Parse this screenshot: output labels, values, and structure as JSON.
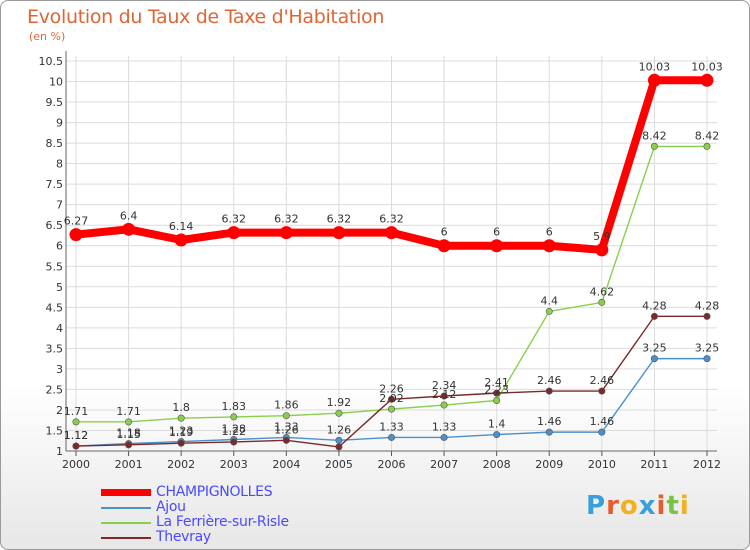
{
  "header": {
    "title": "Evolution du Taux de Taxe d'Habitation",
    "unit": "(en %)"
  },
  "logo": {
    "text": "Proxiti"
  },
  "chart_data": {
    "type": "line",
    "title": "Evolution du Taux de Taxe d'Habitation",
    "ylabel": "(en %)",
    "xlabel": "",
    "x": [
      "2000",
      "2001",
      "2002",
      "2003",
      "2004",
      "2005",
      "2006",
      "2007",
      "2008",
      "2009",
      "2010",
      "2011",
      "2012"
    ],
    "ylim": [
      1,
      10.5
    ],
    "yticks": [
      "1",
      "1.5",
      "2",
      "2.5",
      "3",
      "3.5",
      "4",
      "4.5",
      "5",
      "5.5",
      "6",
      "6.5",
      "7",
      "7.5",
      "8",
      "8.5",
      "9",
      "9.5",
      "10",
      "10.5"
    ],
    "grid": true,
    "legend_position": "bottom-left",
    "series": [
      {
        "name": "CHAMPIGNOLLES",
        "color": "#ff0000",
        "values": [
          6.27,
          6.4,
          6.14,
          6.32,
          6.32,
          6.32,
          6.32,
          6,
          6,
          6,
          5.9,
          10.03,
          10.03
        ],
        "labels": [
          "6.27",
          "6.4",
          "6.14",
          "6.32",
          "6.32",
          "6.32",
          "6.32",
          "6",
          "6",
          "6",
          "5.9",
          "10.03",
          "10.03"
        ]
      },
      {
        "name": "Ajou",
        "color": "#4a90cc",
        "values": [
          1.12,
          1.18,
          1.23,
          1.28,
          1.33,
          1.26,
          1.33,
          1.33,
          1.4,
          1.46,
          1.46,
          3.25,
          3.25
        ],
        "labels": [
          "1.12",
          "1.18",
          "1.23",
          "1.28",
          "1.33",
          "1.26",
          "1.33",
          "1.33",
          "1.4",
          "1.46",
          "1.46",
          "3.25",
          "3.25"
        ]
      },
      {
        "name": "La Ferrière-sur-Risle",
        "color": "#88d04b",
        "values": [
          1.71,
          1.71,
          1.8,
          1.83,
          1.86,
          1.92,
          2.02,
          2.12,
          2.23,
          4.4,
          4.62,
          8.42,
          8.42
        ],
        "labels": [
          "1.71",
          "1.71",
          "1.8",
          "1.83",
          "1.86",
          "1.92",
          "2.02",
          "2.12",
          "2.23",
          "4.4",
          "4.62",
          "8.42",
          "8.42"
        ]
      },
      {
        "name": "Thevray",
        "color": "#7a2a2a",
        "values": [
          1.12,
          1.15,
          1.19,
          1.22,
          1.26,
          1.1,
          2.26,
          2.34,
          2.41,
          2.46,
          2.46,
          4.28,
          4.28
        ],
        "labels": [
          "1.12",
          "1.15",
          "1.19",
          "1.22",
          "1.26",
          "",
          "2.26",
          "2.34",
          "2.41",
          "2.46",
          "2.46",
          "4.28",
          "4.28"
        ]
      }
    ]
  }
}
